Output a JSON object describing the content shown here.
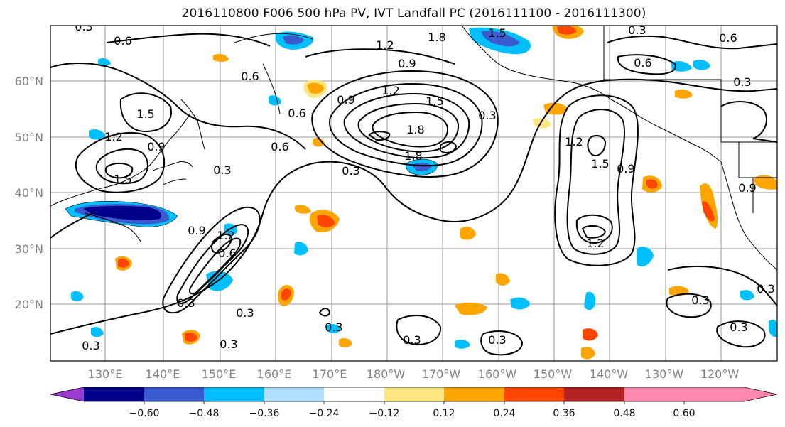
{
  "title": "2016110800 F006 500 hPa PV, IVT Landfall PC (2016111100 - 2016111300)",
  "lat_labels": [
    "60°N",
    "50°N",
    "40°N",
    "30°N",
    "20°N"
  ],
  "lon_labels": [
    "130°E",
    "140°E",
    "150°E",
    "160°E",
    "170°E",
    "180°W",
    "170°W",
    "160°W",
    "150°W",
    "140°W",
    "130°W",
    "120°W"
  ],
  "contour_labels": [
    "0.3",
    "0.6",
    "0.9",
    "1.2",
    "1.5",
    "1.8"
  ],
  "colorbar": {
    "ticks": [
      "−0.60",
      "−0.48",
      "−0.36",
      "−0.24",
      "−0.12",
      "0.12",
      "0.24",
      "0.36",
      "0.48",
      "0.60"
    ],
    "colors": [
      "#9a3ad0",
      "#00008b",
      "#3a5ad0",
      "#00bfff",
      "#b0e0ff",
      "#ffffff",
      "#ffe680",
      "#ffa500",
      "#ff4500",
      "#b22222",
      "#ff88b0"
    ]
  }
}
